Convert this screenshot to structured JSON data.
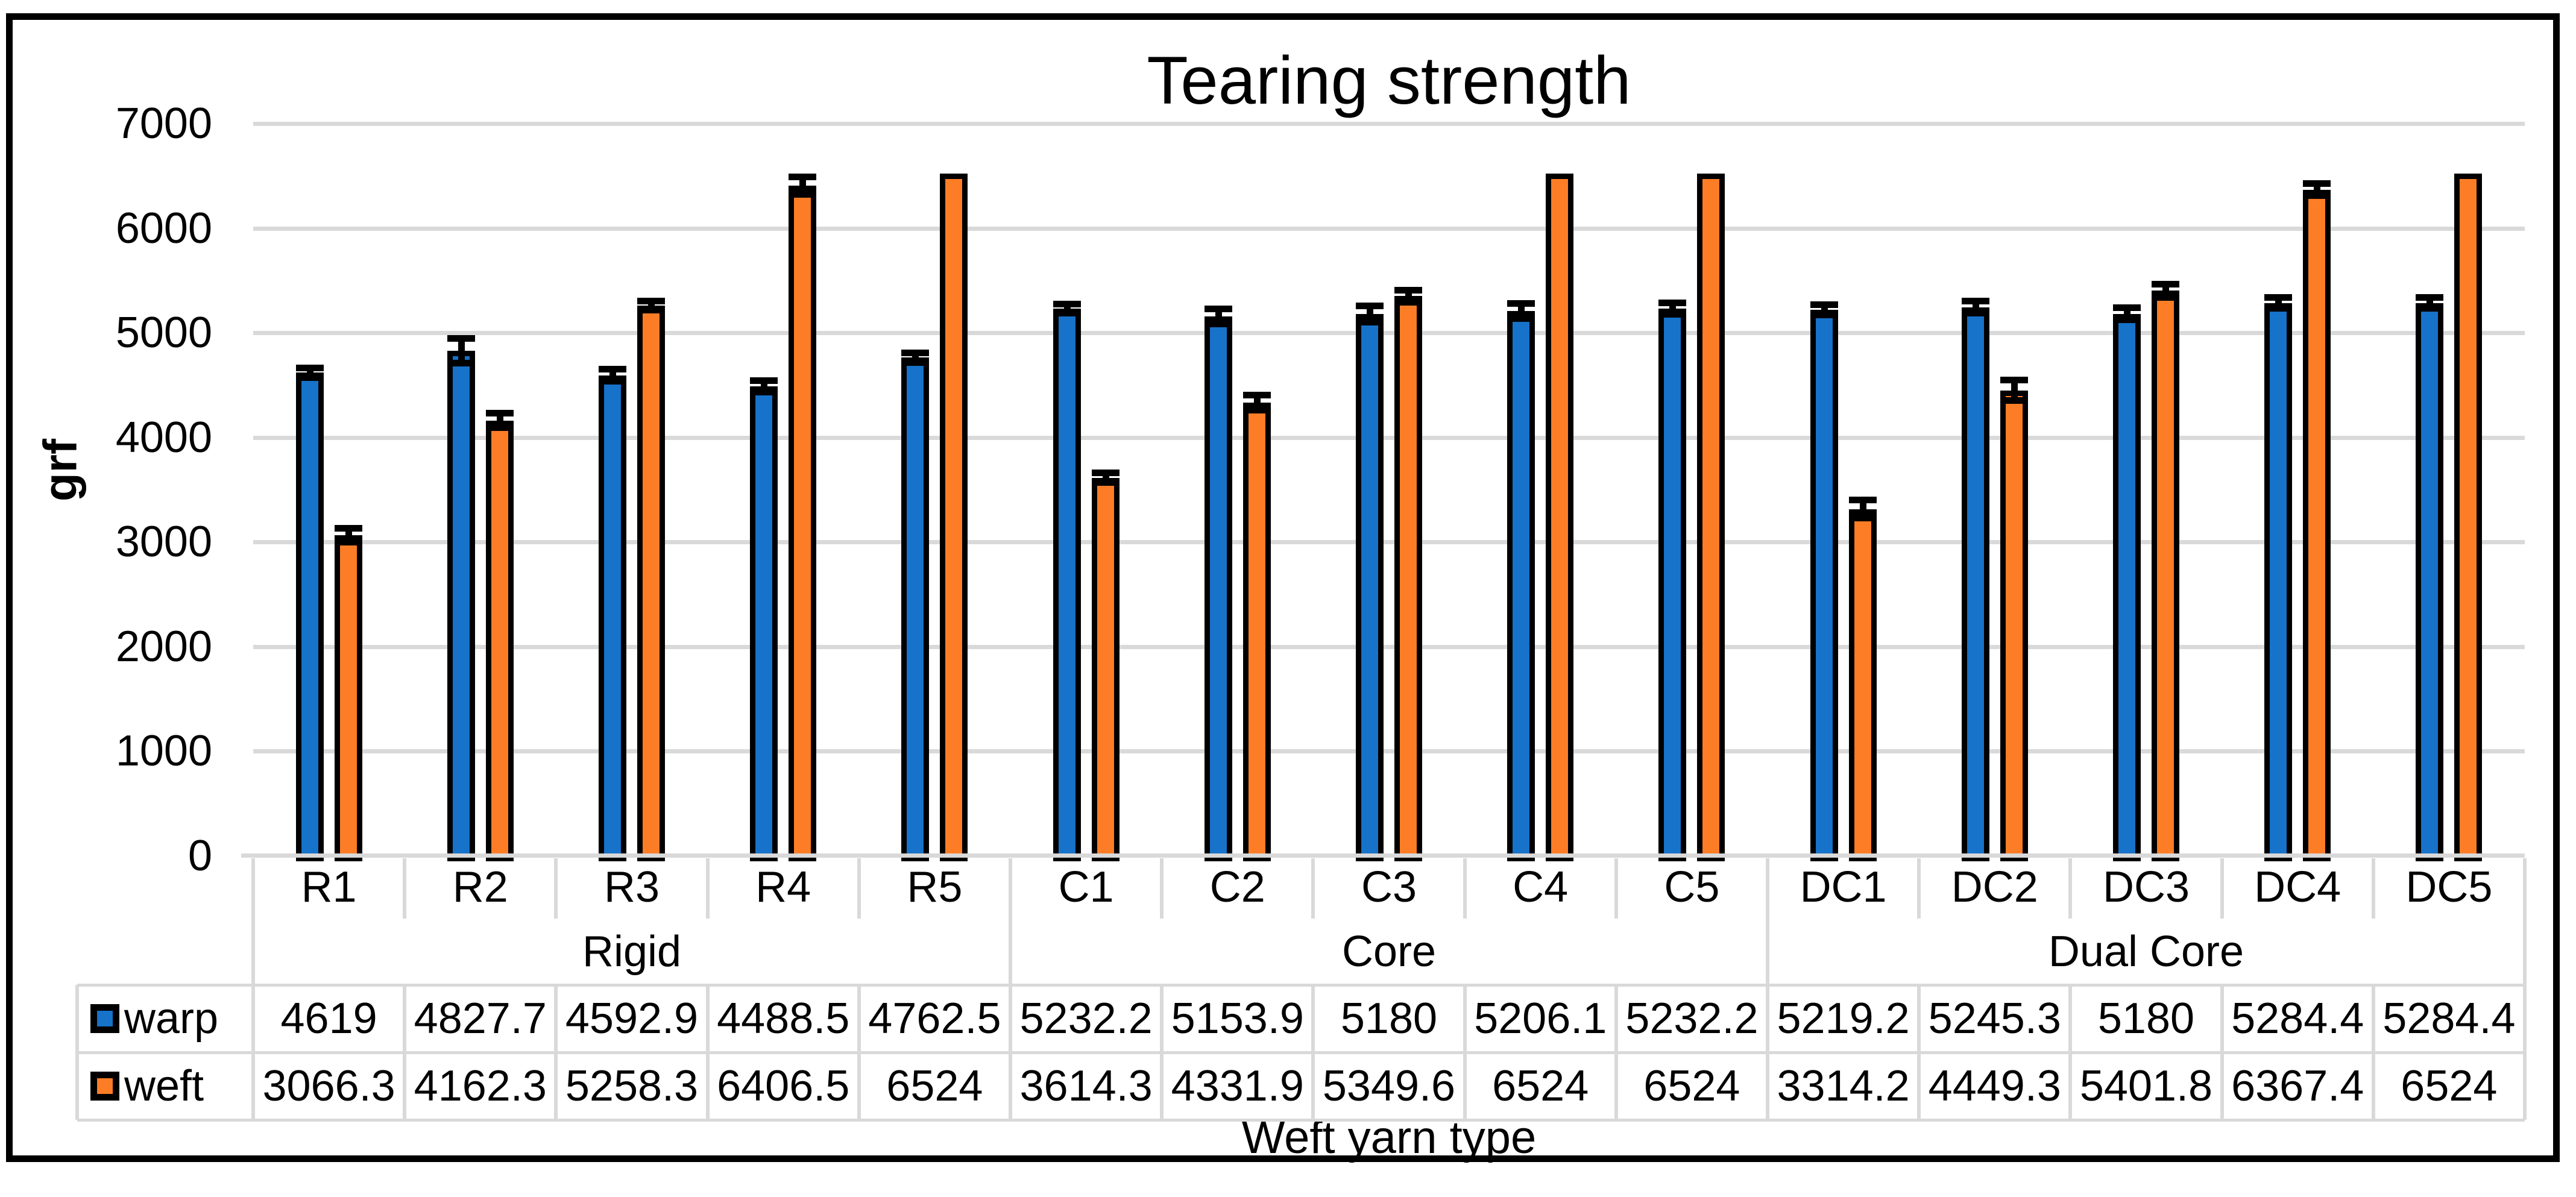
{
  "chart_data": {
    "type": "bar",
    "title": "Tearing strength",
    "xlabel": "Weft yarn type",
    "ylabel": "grf",
    "ylim": [
      0,
      7000
    ],
    "yticks": [
      0,
      1000,
      2000,
      3000,
      4000,
      5000,
      6000,
      7000
    ],
    "grid": true,
    "legend_position": "data-table-left",
    "categories": [
      "R1",
      "R2",
      "R3",
      "R4",
      "R5",
      "C1",
      "C2",
      "C3",
      "C4",
      "C5",
      "DC1",
      "DC2",
      "DC3",
      "DC4",
      "DC5"
    ],
    "category_groups": [
      {
        "label": "Rigid",
        "span": 5
      },
      {
        "label": "Core",
        "span": 5
      },
      {
        "label": "Dual Core",
        "span": 5
      }
    ],
    "series": [
      {
        "name": "warp",
        "color": "#1772C9",
        "values": [
          4619,
          4827.7,
          4592.9,
          4488.5,
          4762.5,
          5232.2,
          5153.9,
          5180,
          5206.1,
          5232.2,
          5219.2,
          5245.3,
          5180,
          5284.4,
          5284.4
        ],
        "errors_est": [
          50,
          120,
          60,
          60,
          50,
          45,
          75,
          80,
          75,
          58,
          50,
          60,
          60,
          55,
          55
        ]
      },
      {
        "name": "weft",
        "color": "#FD7D26",
        "values": [
          3066.3,
          4162.3,
          5258.3,
          6406.5,
          6524,
          3614.3,
          4331.9,
          5349.6,
          6524,
          6524,
          3314.2,
          4449.3,
          5401.8,
          6367.4,
          6524
        ],
        "errors_est": [
          70,
          72,
          45,
          85,
          0,
          50,
          75,
          58,
          0,
          0,
          90,
          100,
          65,
          60,
          0
        ]
      }
    ],
    "colors": {
      "gridline": "#D9D9D9",
      "table_line": "#D9D9D9",
      "bar_outline": "#000000",
      "frame_border": "#000000",
      "text": "#000000",
      "background": "#FFFFFF"
    }
  }
}
